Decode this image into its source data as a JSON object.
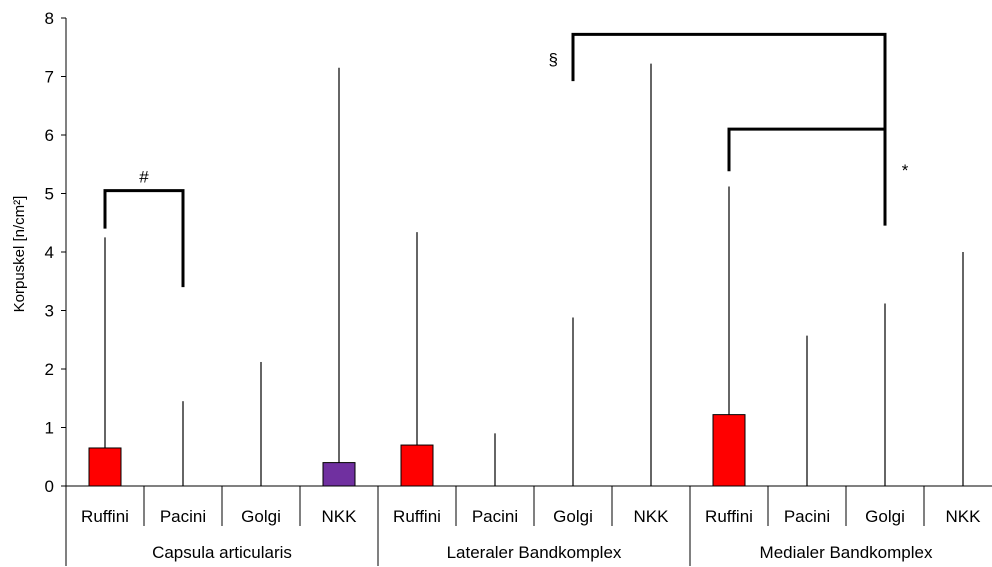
{
  "chart_data": {
    "type": "bar",
    "xlabel": "",
    "ylabel": "Korpuskel [n/cm²]",
    "ylim": [
      0,
      8
    ],
    "yticks": [
      0,
      1,
      2,
      3,
      4,
      5,
      6,
      7,
      8
    ],
    "groups": [
      "Capsula articularis",
      "Lateraler Bandkomplex",
      "Medialer Bandkomplex"
    ],
    "categories": [
      "Ruffini",
      "Pacini",
      "Golgi",
      "NKK"
    ],
    "bars": [
      {
        "group": "Capsula articularis",
        "category": "Ruffini",
        "value": 0.65,
        "error_top": 4.25,
        "color": "#ff0000"
      },
      {
        "group": "Capsula articularis",
        "category": "Pacini",
        "value": 0,
        "error_top": 1.45,
        "color": "#ff0000"
      },
      {
        "group": "Capsula articularis",
        "category": "Golgi",
        "value": 0,
        "error_top": 2.12,
        "color": "#ff0000"
      },
      {
        "group": "Capsula articularis",
        "category": "NKK",
        "value": 0.4,
        "error_top": 7.15,
        "color": "#7030a0"
      },
      {
        "group": "Lateraler Bandkomplex",
        "category": "Ruffini",
        "value": 0.7,
        "error_top": 4.34,
        "color": "#ff0000"
      },
      {
        "group": "Lateraler Bandkomplex",
        "category": "Pacini",
        "value": 0,
        "error_top": 0.9,
        "color": "#ff0000"
      },
      {
        "group": "Lateraler Bandkomplex",
        "category": "Golgi",
        "value": 0,
        "error_top": 2.88,
        "color": "#ff0000"
      },
      {
        "group": "Lateraler Bandkomplex",
        "category": "NKK",
        "value": 0,
        "error_top": 7.22,
        "color": "#7030a0"
      },
      {
        "group": "Medialer Bandkomplex",
        "category": "Ruffini",
        "value": 1.22,
        "error_top": 5.12,
        "color": "#ff0000"
      },
      {
        "group": "Medialer Bandkomplex",
        "category": "Pacini",
        "value": 0,
        "error_top": 2.57,
        "color": "#ff0000"
      },
      {
        "group": "Medialer Bandkomplex",
        "category": "Golgi",
        "value": 0,
        "error_top": 3.12,
        "color": "#ff0000"
      },
      {
        "group": "Medialer Bandkomplex",
        "category": "NKK",
        "value": 0,
        "error_top": 4.0,
        "color": "#7030a0"
      }
    ],
    "significance": [
      {
        "symbol": "#",
        "from_bar": 0,
        "to_bar": 1,
        "y": 5.05,
        "from_start": 4.4,
        "to_start": 3.4
      },
      {
        "symbol": "§",
        "from_bar": 6,
        "to_bar": 10,
        "y": 7.72,
        "from_start": 6.92,
        "to_start": 6.1
      },
      {
        "symbol": "*",
        "from_bar": 8,
        "to_bar": 10,
        "y": 6.1,
        "from_start": 5.38,
        "to_start": 4.45
      }
    ],
    "grid": false,
    "legend": "none"
  }
}
